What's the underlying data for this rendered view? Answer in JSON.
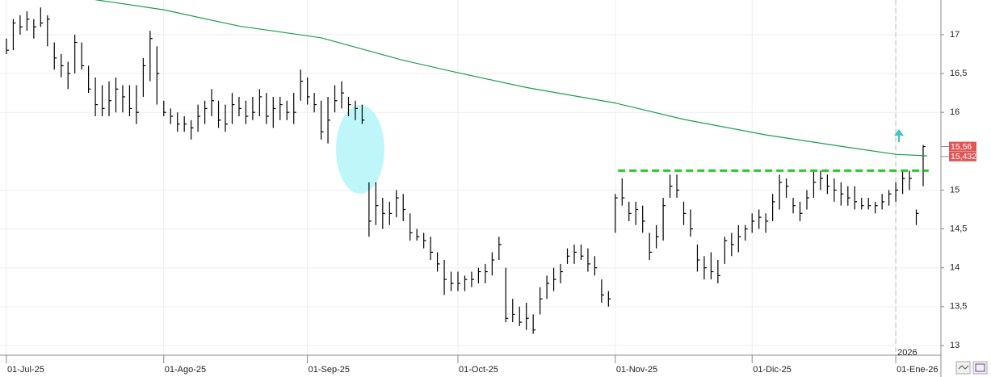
{
  "chart_data": {
    "type": "hlc",
    "color": "#000000",
    "xlim": [
      -0.94,
      136.6
    ],
    "ylim": [
      12.875,
      17.446
    ],
    "xticks": [
      {
        "value": 0,
        "label": "01-Jul-25"
      },
      {
        "value": 23,
        "label": "01-Ago-25"
      },
      {
        "value": 44,
        "label": "01-Sep-25"
      },
      {
        "value": 66,
        "label": "01-Oct-25"
      },
      {
        "value": 89,
        "label": "01-Nov-25"
      },
      {
        "value": 109,
        "label": "01-Dic-25"
      },
      {
        "value": 130,
        "label": "01-Ene-26"
      }
    ],
    "yticks": [
      13,
      {
        "value": 13.5,
        "label": "13,5"
      },
      14,
      {
        "value": 14.5,
        "label": "14,5"
      },
      15,
      16,
      {
        "value": 16.5,
        "label": "16,5"
      },
      17
    ],
    "high": [
      16.95,
      17.2,
      17.25,
      17.3,
      17.2,
      17.35,
      17.25,
      16.9,
      16.75,
      16.65,
      17.0,
      16.9,
      16.6,
      16.45,
      16.35,
      16.4,
      16.45,
      16.35,
      16.35,
      16.35,
      16.7,
      17.05,
      16.85,
      16.15,
      16.05,
      16.0,
      15.95,
      15.9,
      16.1,
      16.15,
      16.3,
      16.15,
      16.1,
      16.25,
      16.2,
      16.15,
      16.2,
      16.3,
      16.25,
      16.2,
      16.2,
      16.15,
      16.25,
      16.55,
      16.45,
      16.25,
      16.15,
      16.2,
      16.35,
      16.4,
      16.2,
      16.15,
      16.1,
      15.1,
      15.1,
      14.9,
      14.85,
      15.0,
      14.95,
      14.7,
      14.5,
      14.45,
      14.4,
      14.2,
      14.1,
      13.95,
      13.95,
      13.9,
      13.95,
      14.0,
      14.05,
      14.2,
      14.4,
      14.0,
      13.6,
      13.5,
      13.55,
      13.4,
      13.75,
      13.9,
      14.0,
      14.05,
      14.25,
      14.3,
      14.3,
      14.25,
      14.15,
      13.85,
      13.7,
      14.95,
      15.15,
      14.85,
      14.85,
      14.8,
      14.45,
      14.55,
      14.9,
      15.2,
      15.2,
      14.85,
      14.75,
      14.3,
      14.15,
      14.2,
      14.1,
      14.4,
      14.45,
      14.55,
      14.55,
      14.7,
      14.75,
      14.7,
      14.95,
      15.2,
      15.15,
      14.9,
      14.85,
      15.0,
      15.25,
      15.25,
      15.2,
      15.15,
      15.1,
      15.05,
      15.05,
      14.9,
      14.9,
      14.85,
      14.95,
      15.0,
      15.1,
      15.25,
      15.25,
      14.75,
      15.58
    ],
    "low": [
      16.75,
      16.8,
      17.0,
      17.05,
      16.95,
      17.1,
      16.85,
      16.55,
      16.45,
      16.3,
      16.5,
      16.55,
      16.25,
      15.95,
      15.95,
      15.95,
      16.0,
      16.0,
      15.95,
      15.85,
      16.2,
      16.4,
      16.1,
      15.95,
      15.85,
      15.75,
      15.75,
      15.65,
      15.75,
      15.85,
      15.95,
      15.8,
      15.75,
      15.85,
      15.95,
      15.85,
      15.9,
      15.95,
      15.85,
      15.8,
      15.9,
      15.9,
      15.85,
      16.15,
      16.1,
      16.0,
      15.65,
      15.6,
      16.0,
      16.05,
      15.95,
      15.9,
      15.85,
      14.4,
      14.55,
      14.5,
      14.55,
      14.65,
      14.6,
      14.35,
      14.35,
      14.25,
      14.1,
      13.95,
      13.65,
      13.7,
      13.7,
      13.7,
      13.75,
      13.8,
      13.8,
      13.9,
      14.1,
      13.3,
      13.3,
      13.25,
      13.2,
      13.15,
      13.4,
      13.6,
      13.7,
      13.8,
      14.05,
      14.05,
      14.1,
      13.95,
      13.9,
      13.55,
      13.5,
      14.45,
      14.8,
      14.6,
      14.55,
      14.45,
      14.1,
      14.25,
      14.35,
      14.9,
      14.9,
      14.55,
      14.4,
      13.95,
      13.85,
      13.85,
      13.8,
      14.05,
      14.15,
      14.2,
      14.35,
      14.45,
      14.5,
      14.45,
      14.6,
      14.75,
      14.9,
      14.7,
      14.6,
      14.75,
      14.9,
      15.0,
      14.95,
      14.85,
      14.8,
      14.8,
      14.75,
      14.75,
      14.75,
      14.7,
      14.75,
      14.8,
      14.85,
      14.95,
      15.0,
      14.55,
      15.05
    ],
    "close": [
      16.8,
      17.15,
      17.1,
      17.2,
      17.1,
      17.15,
      17.2,
      16.7,
      16.6,
      16.5,
      16.9,
      16.6,
      16.3,
      16.1,
      16.05,
      16.15,
      16.3,
      16.2,
      16.05,
      16.0,
      16.6,
      16.95,
      16.5,
      16.0,
      15.95,
      15.85,
      15.85,
      15.8,
      15.95,
      16.05,
      16.15,
      15.9,
      15.85,
      16.1,
      16.05,
      15.95,
      16.0,
      16.2,
      15.95,
      16.05,
      16.1,
      16.0,
      16.0,
      16.4,
      16.2,
      16.1,
      15.75,
      15.9,
      16.15,
      16.25,
      16.1,
      16.05,
      15.9,
      14.6,
      14.8,
      14.7,
      14.7,
      14.9,
      14.75,
      14.45,
      14.4,
      14.35,
      14.2,
      14.05,
      13.85,
      13.8,
      13.8,
      13.85,
      13.85,
      13.95,
      13.95,
      14.1,
      14.3,
      13.35,
      13.4,
      13.3,
      13.35,
      13.2,
      13.6,
      13.8,
      13.85,
      13.95,
      14.15,
      14.2,
      14.15,
      14.05,
      14.0,
      13.65,
      13.6,
      14.9,
      14.9,
      14.7,
      14.75,
      14.6,
      14.2,
      14.4,
      14.8,
      15.05,
      15.0,
      14.7,
      14.5,
      14.1,
      14.0,
      13.95,
      13.9,
      14.35,
      14.3,
      14.4,
      14.5,
      14.6,
      14.65,
      14.6,
      14.85,
      15.1,
      15.05,
      14.8,
      14.7,
      14.9,
      15.1,
      15.15,
      15.05,
      15.0,
      14.95,
      14.9,
      14.85,
      14.8,
      14.8,
      14.8,
      14.85,
      14.95,
      15.0,
      15.15,
      15.15,
      14.7,
      15.56
    ],
    "moving_average": {
      "color": "#1a9e4a",
      "x": [
        13,
        23,
        34,
        46,
        58,
        66,
        76,
        89,
        99,
        111,
        123,
        130,
        134.6
      ],
      "values": [
        17.45,
        17.32,
        17.11,
        16.96,
        16.67,
        16.51,
        16.32,
        16.12,
        15.91,
        15.71,
        15.55,
        15.46,
        15.44
      ]
    },
    "reference_line": {
      "color": "#22cc22",
      "value": 15.25,
      "x": [
        89.4,
        134.8
      ]
    },
    "year_marker": {
      "x": 130,
      "label": "2026"
    },
    "price_labels": [
      {
        "value": 15.56,
        "label": "15,56"
      },
      {
        "value": 15.432,
        "label": "15,432"
      }
    ]
  }
}
